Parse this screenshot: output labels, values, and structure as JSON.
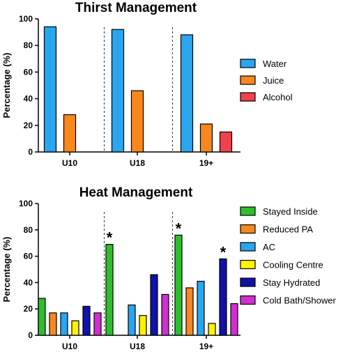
{
  "chart_data": [
    {
      "type": "bar",
      "title": "Thirst Management",
      "ylabel": "Percentage (%)",
      "xlabel": "",
      "ylim": [
        0,
        100
      ],
      "yticks": [
        0,
        20,
        40,
        60,
        80,
        100
      ],
      "categories": [
        "U10",
        "U18",
        "19+"
      ],
      "legend_position": "right",
      "series": [
        {
          "name": "Water",
          "color": "#29A6EF",
          "values": [
            94,
            92,
            88
          ]
        },
        {
          "name": "Juice",
          "color": "#F8871E",
          "values": [
            28,
            46,
            21
          ]
        },
        {
          "name": "Alcohol",
          "color": "#F0414E",
          "values": [
            0,
            0,
            15
          ]
        }
      ],
      "group_separators": "dashed"
    },
    {
      "type": "bar",
      "title": "Heat  Management",
      "ylabel": "Percentage (%)",
      "xlabel": "",
      "ylim": [
        0,
        100
      ],
      "yticks": [
        0,
        20,
        40,
        60,
        80,
        100
      ],
      "categories": [
        "U10",
        "U18",
        "19+"
      ],
      "legend_position": "right",
      "series": [
        {
          "name": "Stayed Inside",
          "color": "#2DBF2D",
          "values": [
            28,
            69,
            76
          ]
        },
        {
          "name": "Reduced PA",
          "color": "#F8871E",
          "values": [
            17,
            0,
            36
          ]
        },
        {
          "name": "AC",
          "color": "#29A6EF",
          "values": [
            17,
            23,
            41
          ]
        },
        {
          "name": "Cooling Centre",
          "color": "#FFF200",
          "values": [
            11,
            15,
            9
          ]
        },
        {
          "name": "Stay Hydrated",
          "color": "#1212A8",
          "values": [
            22,
            46,
            58
          ]
        },
        {
          "name": "Cold Bath/Shower",
          "color": "#D12FD1",
          "values": [
            17,
            31,
            24
          ]
        }
      ],
      "annotations": [
        {
          "text": "*",
          "series": "Stayed Inside",
          "category": "U18"
        },
        {
          "text": "*",
          "series": "Stayed Inside",
          "category": "19+"
        },
        {
          "text": "*",
          "series": "Stay Hydrated",
          "category": "19+"
        }
      ],
      "group_separators": "dashed"
    }
  ]
}
